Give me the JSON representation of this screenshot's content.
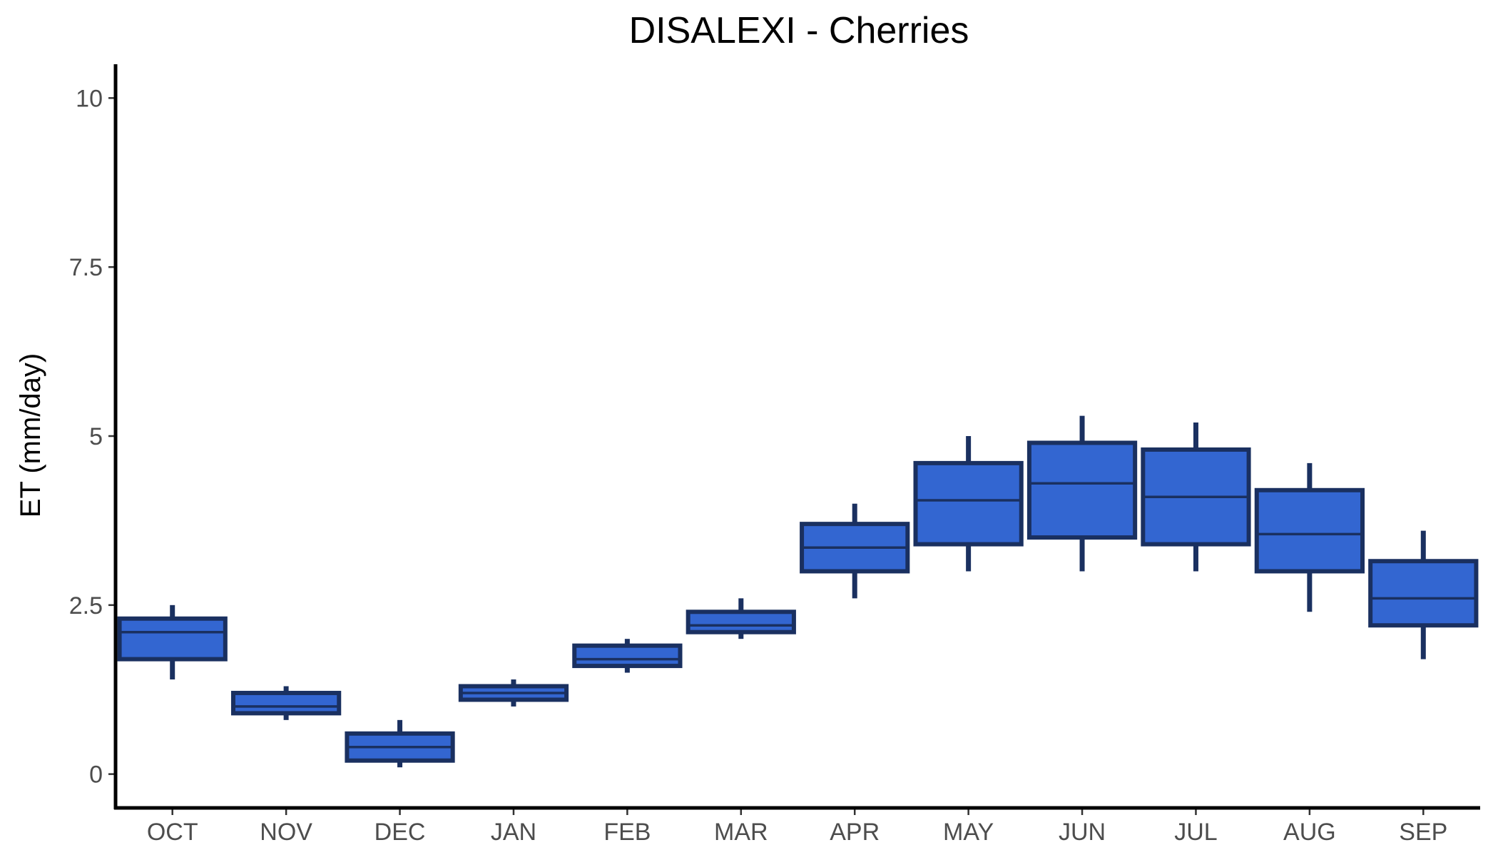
{
  "chart_data": {
    "type": "boxplot",
    "title": "DISALEXI - Cherries",
    "xlabel": "",
    "ylabel": "ET (mm/day)",
    "ylim": [
      -0.5,
      10.5
    ],
    "y_ticks": [
      0,
      2.5,
      5,
      7.5,
      10
    ],
    "y_tick_labels": [
      "0",
      "2.5",
      "5",
      "7.5",
      "10"
    ],
    "grid": false,
    "legend": "none",
    "categories": [
      "OCT",
      "NOV",
      "DEC",
      "JAN",
      "FEB",
      "MAR",
      "APR",
      "MAY",
      "JUN",
      "JUL",
      "AUG",
      "SEP"
    ],
    "series": [
      {
        "boxes": [
          {
            "min": 1.4,
            "q1": 1.7,
            "median": 2.1,
            "q3": 2.3,
            "max": 2.5
          },
          {
            "min": 0.8,
            "q1": 0.9,
            "median": 1.0,
            "q3": 1.2,
            "max": 1.3
          },
          {
            "min": 0.1,
            "q1": 0.2,
            "median": 0.4,
            "q3": 0.6,
            "max": 0.8
          },
          {
            "min": 1.0,
            "q1": 1.1,
            "median": 1.2,
            "q3": 1.3,
            "max": 1.4
          },
          {
            "min": 1.5,
            "q1": 1.6,
            "median": 1.7,
            "q3": 1.9,
            "max": 2.0
          },
          {
            "min": 2.0,
            "q1": 2.1,
            "median": 2.2,
            "q3": 2.4,
            "max": 2.6
          },
          {
            "min": 2.6,
            "q1": 3.0,
            "median": 3.35,
            "q3": 3.7,
            "max": 4.0
          },
          {
            "min": 3.0,
            "q1": 3.4,
            "median": 4.05,
            "q3": 4.6,
            "max": 5.0
          },
          {
            "min": 3.0,
            "q1": 3.5,
            "median": 4.3,
            "q3": 4.9,
            "max": 5.3
          },
          {
            "min": 3.0,
            "q1": 3.4,
            "median": 4.1,
            "q3": 4.8,
            "max": 5.2
          },
          {
            "min": 2.4,
            "q1": 3.0,
            "median": 3.55,
            "q3": 4.2,
            "max": 4.6
          },
          {
            "min": 1.7,
            "q1": 2.2,
            "median": 2.6,
            "q3": 3.15,
            "max": 3.6
          }
        ]
      }
    ],
    "colors": {
      "box_fill": "#3366d1",
      "box_stroke": "#1a3060",
      "axis": "#000000",
      "tick_label": "#4d4d4d"
    }
  }
}
